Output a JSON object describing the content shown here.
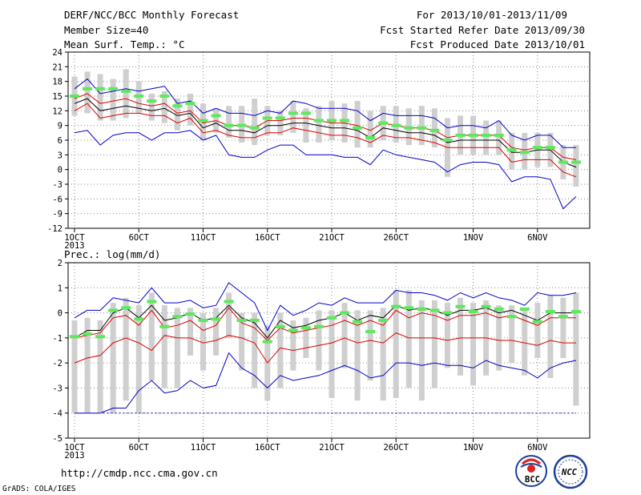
{
  "header": {
    "left": [
      "DERF/NCC/BCC Monthly Forecast",
      "Member Size=40",
      "Mean Surf. Temp.: °C"
    ],
    "right": [
      "For 2013/10/01-2013/11/09",
      "Fcst Started Refer Date 2013/09/30",
      "Fcst Produced Date 2013/10/01"
    ]
  },
  "panel2_title": "Prec.: log(mm/d)",
  "url": "http://cmdp.ncc.cma.gov.cn",
  "credit": "GrADS: COLA/IGES",
  "logos": {
    "left": "BCC",
    "right": "NCC"
  },
  "colors": {
    "max_min": "#0000cc",
    "mean": "#000000",
    "pct": "#dd0000",
    "obs": "#5de85d",
    "spread": "#cfcfcf",
    "grid": "#888888"
  },
  "chart_data": [
    {
      "type": "box",
      "title": "Mean Surf. Temp.: °C",
      "x_dates": [
        "2013/10/01",
        "2013/10/02",
        "2013/10/03",
        "2013/10/04",
        "2013/10/05",
        "2013/10/06",
        "2013/10/07",
        "2013/10/08",
        "2013/10/09",
        "2013/10/10",
        "2013/10/11",
        "2013/10/12",
        "2013/10/13",
        "2013/10/14",
        "2013/10/15",
        "2013/10/16",
        "2013/10/17",
        "2013/10/18",
        "2013/10/19",
        "2013/10/20",
        "2013/10/21",
        "2013/10/22",
        "2013/10/23",
        "2013/10/24",
        "2013/10/25",
        "2013/10/26",
        "2013/10/27",
        "2013/10/28",
        "2013/10/29",
        "2013/10/30",
        "2013/10/31",
        "2013/11/01",
        "2013/11/02",
        "2013/11/03",
        "2013/11/04",
        "2013/11/05",
        "2013/11/06",
        "2013/11/07",
        "2013/11/08",
        "2013/11/09"
      ],
      "x_tick_labels": [
        "1OCT",
        "6OCT",
        "11OCT",
        "16OCT",
        "21OCT",
        "26OCT",
        "1NOV",
        "6NOV"
      ],
      "x_year_label": "2013",
      "ylim": [
        -12,
        24
      ],
      "y_ticks": [
        -12,
        -9,
        -6,
        -3,
        0,
        3,
        6,
        9,
        12,
        15,
        18,
        21,
        24
      ],
      "grid": true,
      "series": [
        {
          "name": "max",
          "values": [
            16.5,
            18.5,
            15.5,
            16,
            16.5,
            16,
            16.5,
            17,
            13.5,
            14,
            11.5,
            12.5,
            11.5,
            11.5,
            11,
            12,
            11.5,
            14,
            13.5,
            12.5,
            12.5,
            12.5,
            12,
            10,
            11.5,
            11,
            11,
            11,
            10.5,
            8.5,
            9,
            9,
            8.5,
            10,
            7,
            6,
            7,
            7,
            4.5,
            4.5
          ]
        },
        {
          "name": "p75",
          "values": [
            14.5,
            15.5,
            13.5,
            14,
            14.5,
            13.5,
            13,
            13.5,
            11.5,
            12,
            9.5,
            10,
            9,
            9,
            8.5,
            10,
            10,
            10.5,
            10.5,
            10,
            9.5,
            9.5,
            9,
            8,
            9.5,
            9,
            8.5,
            8.5,
            8,
            6.5,
            7,
            7,
            7,
            7,
            4.5,
            4,
            4.5,
            4.5,
            2.5,
            2
          ]
        },
        {
          "name": "mean",
          "values": [
            13.5,
            14.5,
            12,
            12.5,
            13,
            12.5,
            12,
            12.5,
            11,
            11.5,
            8.5,
            9.5,
            8,
            8,
            7.5,
            9,
            9,
            9.5,
            9.5,
            9,
            8.5,
            8.5,
            8,
            6.5,
            8.5,
            8,
            7.5,
            7.5,
            7,
            5.5,
            6,
            6,
            6,
            6,
            3.5,
            3.5,
            4,
            4,
            1.5,
            0.5
          ]
        },
        {
          "name": "p25",
          "values": [
            12,
            13.5,
            10.5,
            11,
            11.5,
            11.5,
            11,
            11,
            9.5,
            10.5,
            7.5,
            8,
            7,
            6.5,
            6.5,
            7.5,
            7.5,
            8.5,
            8,
            7.5,
            7,
            7,
            6.5,
            5.5,
            7,
            6.5,
            6.5,
            6,
            5.5,
            4.5,
            4.5,
            4.5,
            4.5,
            4.5,
            1.5,
            2,
            2,
            2,
            -0.5,
            -1.5
          ]
        },
        {
          "name": "min",
          "values": [
            7.5,
            8,
            5,
            7,
            7.5,
            7.5,
            6,
            7.5,
            7.5,
            8,
            6,
            7,
            3,
            2.5,
            2.5,
            4,
            5,
            5,
            3,
            3,
            3,
            2.5,
            2.5,
            1,
            4,
            3,
            2.5,
            2,
            1.5,
            -0.5,
            1,
            1.5,
            1.5,
            1,
            -2.5,
            -1.5,
            -1.5,
            -2,
            -8,
            -5.5
          ]
        },
        {
          "name": "obs",
          "values": [
            15,
            16.5,
            16.5,
            16.5,
            16,
            15,
            14,
            15,
            13,
            13.5,
            10,
            11,
            9,
            9,
            8.5,
            10.5,
            10.5,
            11.5,
            11.5,
            10,
            10,
            10,
            8.5,
            6.5,
            9.5,
            9,
            8.5,
            8.5,
            8,
            6,
            7,
            7,
            7,
            7,
            4,
            3.5,
            4.5,
            4.5,
            1.5,
            1.5
          ]
        },
        {
          "name": "spread_high",
          "values": [
            19,
            20,
            19.5,
            18.5,
            20.5,
            18,
            15.5,
            16,
            14.5,
            15.5,
            13.5,
            12.5,
            13,
            13,
            14.5,
            13,
            12,
            14,
            12.5,
            13,
            14,
            13.5,
            14,
            12,
            13,
            13,
            12.5,
            13,
            12.5,
            10.5,
            11,
            11,
            10,
            10,
            7.5,
            7.5,
            7.5,
            7.5,
            5,
            5
          ]
        },
        {
          "name": "spread_low",
          "values": [
            11,
            11.5,
            10,
            10,
            10.5,
            11.5,
            10,
            9.5,
            8,
            9,
            6,
            7.5,
            6.5,
            5.5,
            5,
            7,
            7,
            7.5,
            5.5,
            5.5,
            6,
            5.5,
            4.5,
            4.5,
            6,
            5.5,
            5,
            5,
            4.5,
            -1.5,
            3,
            3,
            3,
            3,
            0,
            0,
            0.5,
            0.5,
            -2,
            -3.5
          ]
        }
      ]
    },
    {
      "type": "box",
      "title": "Prec.: log(mm/d)",
      "x_tick_labels": [
        "1OCT",
        "6OCT",
        "11OCT",
        "16OCT",
        "21OCT",
        "26OCT",
        "1NOV",
        "6NOV"
      ],
      "x_year_label": "2013",
      "ylim": [
        -5,
        2
      ],
      "y_ticks": [
        -5,
        -4,
        -3,
        -2,
        -1,
        0,
        1,
        2
      ],
      "grid": true,
      "series": [
        {
          "name": "max",
          "values": [
            -0.2,
            0.1,
            0.1,
            0.6,
            0.5,
            0.4,
            1.0,
            0.4,
            0.4,
            0.5,
            0.2,
            0.3,
            1.2,
            0.8,
            0.4,
            -0.7,
            0.3,
            -0.1,
            0.1,
            0.4,
            0.3,
            0.6,
            0.4,
            0.4,
            0.4,
            0.9,
            0.8,
            0.8,
            0.7,
            0.5,
            0.8,
            0.6,
            0.8,
            0.6,
            0.5,
            0.3,
            0.8,
            0.7,
            0.7,
            0.8
          ]
        },
        {
          "name": "mean",
          "values": [
            -1.0,
            -0.7,
            -0.7,
            0.0,
            0.2,
            -0.2,
            0.3,
            -0.3,
            -0.2,
            0.0,
            -0.3,
            -0.2,
            0.3,
            -0.2,
            -0.4,
            -1.0,
            -0.3,
            -0.6,
            -0.5,
            -0.3,
            -0.2,
            0.0,
            -0.3,
            -0.1,
            -0.2,
            0.3,
            0.1,
            0.2,
            0.1,
            -0.1,
            0.1,
            0.1,
            0.2,
            0.0,
            0.1,
            -0.1,
            -0.3,
            0.0,
            0.0,
            0.0
          ]
        },
        {
          "name": "p75",
          "values": [
            -1.0,
            -0.9,
            -0.8,
            -0.2,
            -0.1,
            -0.5,
            0.1,
            -0.6,
            -0.5,
            -0.3,
            -0.7,
            -0.5,
            0.2,
            -0.4,
            -0.6,
            -1.1,
            -0.6,
            -0.8,
            -0.7,
            -0.6,
            -0.5,
            -0.3,
            -0.5,
            -0.3,
            -0.5,
            0.1,
            -0.2,
            0.0,
            -0.1,
            -0.3,
            -0.1,
            -0.1,
            0.0,
            -0.2,
            -0.1,
            -0.3,
            -0.5,
            -0.2,
            -0.2,
            -0.2
          ]
        },
        {
          "name": "p25",
          "values": [
            -2.0,
            -1.8,
            -1.7,
            -1.2,
            -1.0,
            -1.2,
            -1.5,
            -0.9,
            -1.0,
            -1.0,
            -1.2,
            -1.1,
            -0.9,
            -1.0,
            -1.2,
            -2.0,
            -1.4,
            -1.5,
            -1.4,
            -1.3,
            -1.2,
            -1.0,
            -1.2,
            -1.1,
            -1.2,
            -0.8,
            -1.0,
            -1.0,
            -1.0,
            -1.1,
            -1.0,
            -1.0,
            -1.0,
            -1.1,
            -1.1,
            -1.2,
            -1.3,
            -1.1,
            -1.2,
            -1.2
          ]
        },
        {
          "name": "min",
          "values": [
            -4.0,
            -4.0,
            -4.0,
            -3.8,
            -3.8,
            -3.1,
            -2.7,
            -3.2,
            -3.1,
            -2.7,
            -3.0,
            -2.9,
            -1.6,
            -2.2,
            -2.5,
            -3.0,
            -2.5,
            -2.7,
            -2.6,
            -2.5,
            -2.3,
            -2.1,
            -2.3,
            -2.6,
            -2.5,
            -2.0,
            -2.0,
            -2.1,
            -2.0,
            -2.1,
            -2.1,
            -2.2,
            -1.9,
            -2.1,
            -2.2,
            -2.3,
            -2.6,
            -2.2,
            -2.0,
            -1.9
          ]
        },
        {
          "name": "obs",
          "values": [
            -0.95,
            -0.85,
            -0.95,
            0.1,
            0.2,
            -0.25,
            0.45,
            -0.55,
            -0.15,
            -0.05,
            -0.3,
            -0.25,
            0.45,
            -0.3,
            -0.3,
            -1.15,
            -0.55,
            -0.7,
            -0.6,
            -0.55,
            -0.2,
            0.0,
            -0.35,
            -0.75,
            -0.3,
            0.25,
            0.2,
            0.15,
            0.1,
            0.0,
            0.25,
            0.05,
            0.25,
            0.15,
            -0.15,
            0.15,
            -0.35,
            0.05,
            -0.15,
            0.05
          ]
        },
        {
          "name": "spread_high",
          "values": [
            -0.3,
            -0.2,
            -0.3,
            0.4,
            0.6,
            0.3,
            0.8,
            0.3,
            0.2,
            0.2,
            0.0,
            0.2,
            0.8,
            0.0,
            0.0,
            -0.5,
            0.0,
            -0.3,
            -0.2,
            0.1,
            0.1,
            0.4,
            0.1,
            0.1,
            0.2,
            0.9,
            0.9,
            0.5,
            0.5,
            0.4,
            0.6,
            0.4,
            0.5,
            0.3,
            0.3,
            0.2,
            0.4,
            0.7,
            0.6,
            0.8
          ]
        },
        {
          "name": "spread_low",
          "values": [
            -4.0,
            -4.0,
            -4.0,
            -4.0,
            -3.5,
            -4.0,
            -2.7,
            -3.0,
            -3.0,
            -1.7,
            -2.3,
            -1.7,
            -1.0,
            -2.3,
            -3.0,
            -3.5,
            -3.0,
            -2.3,
            -1.8,
            -2.3,
            -3.4,
            -2.2,
            -3.5,
            -2.7,
            -3.5,
            -3.4,
            -3.0,
            -3.5,
            -3.0,
            -2.2,
            -2.5,
            -2.9,
            -2.5,
            -2.3,
            -2.0,
            -2.5,
            -1.8,
            -2.6,
            -1.8,
            -3.7
          ]
        }
      ]
    }
  ]
}
